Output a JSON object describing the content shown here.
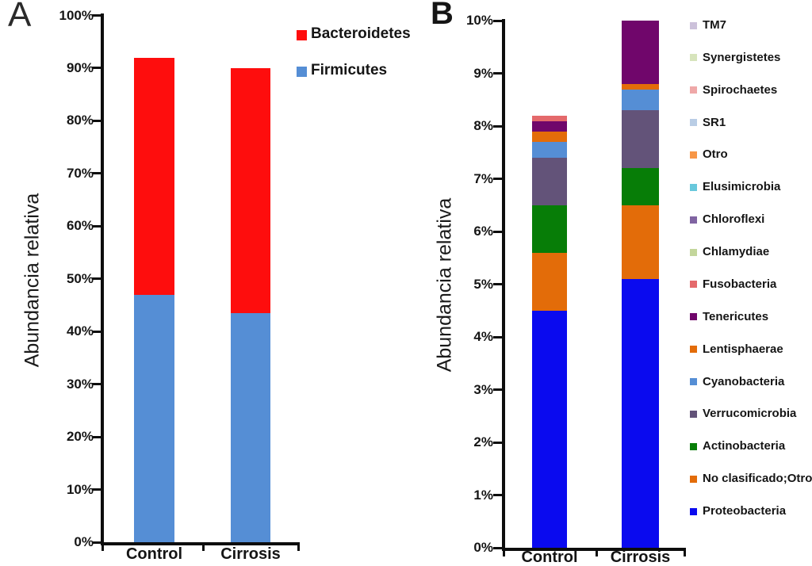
{
  "figure_title": "",
  "chart_data": [
    {
      "type": "bar",
      "stacked": true,
      "panel_label": "A",
      "ylabel": "Abundancia relativa",
      "categories": [
        "Control",
        "Cirrosis"
      ],
      "ylim": [
        0,
        100
      ],
      "ytick_labels": [
        "0%",
        "10%",
        "20%",
        "30%",
        "40%",
        "50%",
        "60%",
        "70%",
        "80%",
        "90%",
        "100%"
      ],
      "grid": false,
      "legend_position": "top-right",
      "legend": [
        "Bacteroidetes",
        "Firmicutes"
      ],
      "series": [
        {
          "name": "Firmicutes",
          "color": "#558ed5",
          "values": [
            47.0,
            43.5
          ]
        },
        {
          "name": "Bacteroidetes",
          "color": "#fe0d0d",
          "values": [
            45.0,
            46.5
          ]
        }
      ]
    },
    {
      "type": "bar",
      "stacked": true,
      "panel_label": "B",
      "ylabel": "Abundancia relativa",
      "categories": [
        "Control",
        "Cirrosis"
      ],
      "ylim": [
        0,
        10
      ],
      "ytick_labels": [
        "0%",
        "1%",
        "2%",
        "3%",
        "4%",
        "5%",
        "6%",
        "7%",
        "8%",
        "9%",
        "10%"
      ],
      "grid": false,
      "legend_position": "right",
      "legend": [
        "TM7",
        "Synergistetes",
        "Spirochaetes",
        "SR1",
        "Otro",
        "Elusimicrobia",
        "Chloroflexi",
        "Chlamydiae",
        "Fusobacteria",
        "Tenericutes",
        "Lentisphaerae",
        "Cyanobacteria",
        "Verrucomicrobia",
        "Actinobacteria",
        "No clasificado;Otro",
        "Proteobacteria"
      ],
      "series": [
        {
          "name": "Proteobacteria",
          "color": "#0a0aef",
          "values": [
            4.5,
            5.1
          ]
        },
        {
          "name": "No clasificado;Otro",
          "color": "#e36c09",
          "values": [
            1.1,
            1.4
          ]
        },
        {
          "name": "Actinobacteria",
          "color": "#077d07",
          "values": [
            0.9,
            0.7
          ]
        },
        {
          "name": "Verrucomicrobia",
          "color": "#635379",
          "values": [
            0.9,
            1.1
          ]
        },
        {
          "name": "Cyanobacteria",
          "color": "#558ed5",
          "values": [
            0.3,
            0.4
          ]
        },
        {
          "name": "Lentisphaerae",
          "color": "#e36c09",
          "values": [
            0.2,
            0.1
          ]
        },
        {
          "name": "Tenericutes",
          "color": "#70066b",
          "values": [
            0.2,
            1.2
          ]
        },
        {
          "name": "Fusobacteria",
          "color": "#e4696b",
          "values": [
            0.1,
            0.0
          ]
        },
        {
          "name": "Chlamydiae",
          "color": "#c3d69b",
          "values": [
            0.0,
            0.0
          ]
        },
        {
          "name": "Chloroflexi",
          "color": "#8064a2",
          "values": [
            0.0,
            0.0
          ]
        },
        {
          "name": "Elusimicrobia",
          "color": "#68c8dc",
          "values": [
            0.0,
            0.0
          ]
        },
        {
          "name": "Otro",
          "color": "#f79646",
          "values": [
            0.0,
            0.0
          ]
        },
        {
          "name": "SR1",
          "color": "#b9cde5",
          "values": [
            0.0,
            0.0
          ]
        },
        {
          "name": "Spirochaetes",
          "color": "#efa8a8",
          "values": [
            0.0,
            0.0
          ]
        },
        {
          "name": "Synergistetes",
          "color": "#d7e4bc",
          "values": [
            0.0,
            0.0
          ]
        },
        {
          "name": "TM7",
          "color": "#ccc1da",
          "values": [
            0.0,
            0.0
          ]
        }
      ]
    }
  ]
}
